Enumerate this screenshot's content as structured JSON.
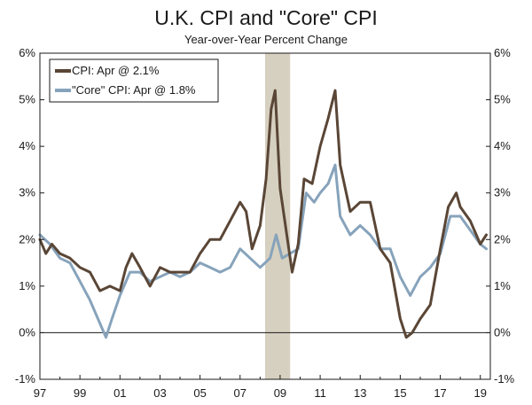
{
  "chart_data": {
    "type": "line",
    "title": "U.K. CPI and \"Core\" CPI",
    "subtitle": "Year-over-Year Percent Change",
    "xlabel": "",
    "ylabel": "",
    "x_tick_labels": [
      "97",
      "99",
      "01",
      "03",
      "05",
      "07",
      "09",
      "11",
      "13",
      "15",
      "17",
      "19"
    ],
    "x_tick_years": [
      1997,
      1999,
      2001,
      2003,
      2005,
      2007,
      2009,
      2011,
      2013,
      2015,
      2017,
      2019
    ],
    "xlim": [
      1997.0,
      2019.5
    ],
    "y_tick_labels": [
      "-1%",
      "0%",
      "1%",
      "2%",
      "3%",
      "4%",
      "5%",
      "6%"
    ],
    "y_tick_values": [
      -1,
      0,
      1,
      2,
      3,
      4,
      5,
      6
    ],
    "ylim": [
      -1,
      6
    ],
    "grid": false,
    "zero_line": true,
    "legend_position": "top-left",
    "recession_shading": {
      "start": 2008.25,
      "end": 2009.5,
      "color": "#d6d0c0"
    },
    "series": [
      {
        "name": "CPI: Apr @ 2.1%",
        "color": "#5a4636",
        "x": [
          1997.0,
          1997.3,
          1997.6,
          1998.0,
          1998.5,
          1999.0,
          1999.5,
          2000.0,
          2000.5,
          2001.0,
          2001.3,
          2001.6,
          2002.0,
          2002.5,
          2003.0,
          2003.5,
          2004.0,
          2004.5,
          2005.0,
          2005.5,
          2006.0,
          2006.5,
          2007.0,
          2007.3,
          2007.6,
          2008.0,
          2008.3,
          2008.55,
          2008.75,
          2009.0,
          2009.3,
          2009.6,
          2009.9,
          2010.2,
          2010.6,
          2011.0,
          2011.4,
          2011.75,
          2012.0,
          2012.5,
          2013.0,
          2013.5,
          2014.0,
          2014.5,
          2015.0,
          2015.3,
          2015.6,
          2016.0,
          2016.5,
          2017.0,
          2017.4,
          2017.8,
          2018.0,
          2018.5,
          2019.0,
          2019.3
        ],
        "y": [
          2.0,
          1.7,
          1.9,
          1.7,
          1.6,
          1.4,
          1.3,
          0.9,
          1.0,
          0.9,
          1.4,
          1.7,
          1.4,
          1.0,
          1.4,
          1.3,
          1.3,
          1.3,
          1.7,
          2.0,
          2.0,
          2.4,
          2.8,
          2.6,
          1.8,
          2.3,
          3.3,
          4.8,
          5.2,
          3.1,
          2.2,
          1.3,
          1.9,
          3.3,
          3.2,
          4.0,
          4.6,
          5.2,
          3.6,
          2.6,
          2.8,
          2.8,
          1.8,
          1.5,
          0.3,
          -0.1,
          0.0,
          0.3,
          0.6,
          1.8,
          2.7,
          3.0,
          2.7,
          2.4,
          1.9,
          2.1
        ]
      },
      {
        "name": "\"Core\" CPI: Apr @ 1.8%",
        "color": "#87a3bb",
        "x": [
          1997.0,
          1997.5,
          1998.0,
          1998.5,
          1999.0,
          1999.5,
          2000.0,
          2000.3,
          2000.6,
          2001.0,
          2001.5,
          2002.0,
          2002.5,
          2003.0,
          2003.5,
          2004.0,
          2004.5,
          2005.0,
          2005.5,
          2006.0,
          2006.5,
          2007.0,
          2007.5,
          2008.0,
          2008.5,
          2008.8,
          2009.1,
          2009.5,
          2009.9,
          2010.3,
          2010.7,
          2011.0,
          2011.4,
          2011.75,
          2012.0,
          2012.5,
          2013.0,
          2013.5,
          2014.0,
          2014.5,
          2015.0,
          2015.5,
          2016.0,
          2016.5,
          2017.0,
          2017.5,
          2018.0,
          2018.5,
          2019.0,
          2019.3
        ],
        "y": [
          2.1,
          1.9,
          1.6,
          1.5,
          1.1,
          0.7,
          0.2,
          -0.1,
          0.3,
          0.8,
          1.3,
          1.3,
          1.1,
          1.2,
          1.3,
          1.2,
          1.3,
          1.5,
          1.4,
          1.3,
          1.4,
          1.8,
          1.6,
          1.4,
          1.6,
          2.1,
          1.6,
          1.7,
          1.8,
          3.0,
          2.8,
          3.0,
          3.2,
          3.6,
          2.5,
          2.1,
          2.3,
          2.1,
          1.8,
          1.8,
          1.2,
          0.8,
          1.2,
          1.4,
          1.7,
          2.5,
          2.5,
          2.2,
          1.9,
          1.8
        ]
      }
    ]
  }
}
